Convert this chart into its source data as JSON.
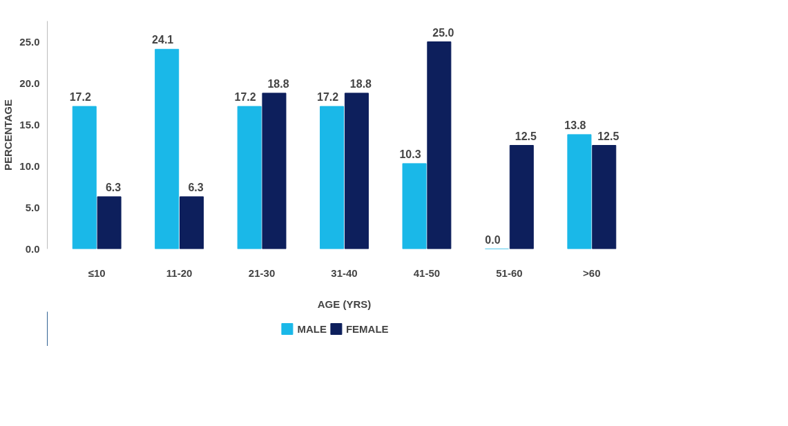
{
  "chart_data": {
    "type": "bar",
    "xlabel": "AGE (YRS)",
    "ylabel": "PERCENTAGE",
    "categories": [
      "≤10",
      "11-20",
      "21-30",
      "31-40",
      "41-50",
      "51-60",
      ">60"
    ],
    "series": [
      {
        "name": "MALE",
        "color": "#1ab8e8",
        "values": [
          17.2,
          24.1,
          17.2,
          17.2,
          10.3,
          0.0,
          13.8
        ],
        "value_labels": [
          "17.2",
          "24.1",
          "17.2",
          "17.2",
          "10.3",
          "0.0",
          "13.8"
        ]
      },
      {
        "name": "FEMALE",
        "color": "#0d1f5c",
        "values": [
          6.3,
          6.3,
          18.8,
          18.8,
          25.0,
          12.5,
          12.5
        ],
        "value_labels": [
          "6.3",
          "6.3",
          "18.8",
          "18.8",
          "25.0",
          "12.5",
          "12.5"
        ]
      }
    ],
    "ylim": [
      0,
      27.5
    ],
    "yticks": [
      {
        "value": 0,
        "label": "0.0"
      },
      {
        "value": 5,
        "label": "5.0"
      },
      {
        "value": 10,
        "label": "10.0"
      },
      {
        "value": 15,
        "label": "15.0"
      },
      {
        "value": 20,
        "label": "20.0"
      },
      {
        "value": 25,
        "label": "25.0"
      }
    ],
    "grid": false,
    "legend": "bottom"
  }
}
